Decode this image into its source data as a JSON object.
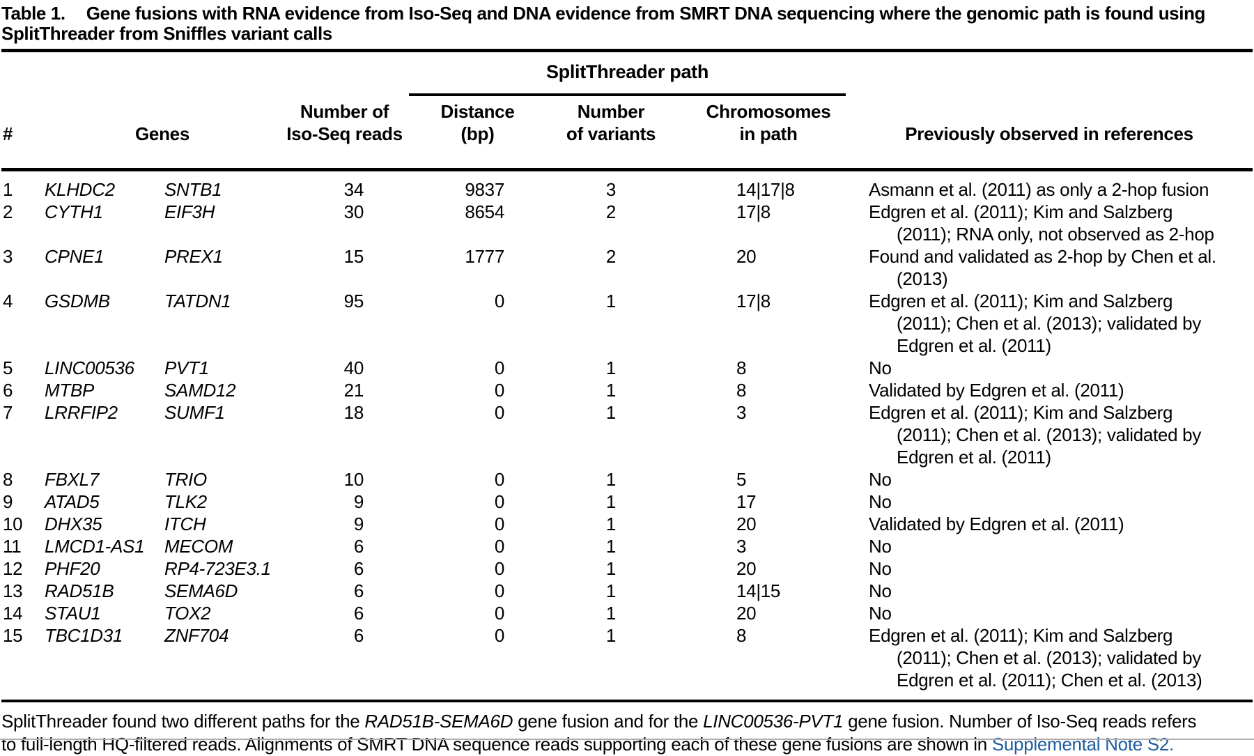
{
  "title": {
    "label": "Table 1.",
    "text": "Gene fusions with RNA evidence from Iso-Seq and DNA evidence from SMRT DNA sequencing where the genomic path is found using\nSplitThreader from Sniffles variant calls"
  },
  "table": {
    "span_header": "SplitThreader path",
    "columns": {
      "num": "#",
      "genes": "Genes",
      "reads": "Number of\nIso-Seq reads",
      "distance": "Distance\n(bp)",
      "variants": "Number\nof variants",
      "chromosomes": "Chromosomes\nin path",
      "references": "Previously observed in references"
    },
    "rows": [
      {
        "num": "1",
        "gene1": "KLHDC2",
        "gene2": "SNTB1",
        "reads": "34",
        "distance": "9837",
        "variants": "3",
        "chromosomes": "14|17|8",
        "reference": "Asmann et al. (2011) as only a 2-hop fusion"
      },
      {
        "num": "2",
        "gene1": "CYTH1",
        "gene2": "EIF3H",
        "reads": "30",
        "distance": "8654",
        "variants": "2",
        "chromosomes": "17|8",
        "reference": "Edgren et al. (2011); Kim and Salzberg\n(2011); RNA only, not observed as 2-hop"
      },
      {
        "num": "3",
        "gene1": "CPNE1",
        "gene2": "PREX1",
        "reads": "15",
        "distance": "1777",
        "variants": "2",
        "chromosomes": "20",
        "reference": "Found and validated as 2-hop by Chen et al.\n(2013)"
      },
      {
        "num": "4",
        "gene1": "GSDMB",
        "gene2": "TATDN1",
        "reads": "95",
        "distance": "0",
        "variants": "1",
        "chromosomes": "17|8",
        "reference": "Edgren et al. (2011); Kim and Salzberg\n(2011); Chen et al. (2013); validated by\nEdgren et al. (2011)"
      },
      {
        "num": "5",
        "gene1": "LINC00536",
        "gene2": "PVT1",
        "reads": "40",
        "distance": "0",
        "variants": "1",
        "chromosomes": "8",
        "reference": "No"
      },
      {
        "num": "6",
        "gene1": "MTBP",
        "gene2": "SAMD12",
        "reads": "21",
        "distance": "0",
        "variants": "1",
        "chromosomes": "8",
        "reference": "Validated by Edgren et al. (2011)"
      },
      {
        "num": "7",
        "gene1": "LRRFIP2",
        "gene2": "SUMF1",
        "reads": "18",
        "distance": "0",
        "variants": "1",
        "chromosomes": "3",
        "reference": "Edgren et al. (2011); Kim and Salzberg\n(2011); Chen et al. (2013); validated by\nEdgren et al. (2011)"
      },
      {
        "num": "8",
        "gene1": "FBXL7",
        "gene2": "TRIO",
        "reads": "10",
        "distance": "0",
        "variants": "1",
        "chromosomes": "5",
        "reference": "No"
      },
      {
        "num": "9",
        "gene1": "ATAD5",
        "gene2": "TLK2",
        "reads": "9",
        "distance": "0",
        "variants": "1",
        "chromosomes": "17",
        "reference": "No"
      },
      {
        "num": "10",
        "gene1": "DHX35",
        "gene2": "ITCH",
        "reads": "9",
        "distance": "0",
        "variants": "1",
        "chromosomes": "20",
        "reference": "Validated by Edgren et al. (2011)"
      },
      {
        "num": "11",
        "gene1": "LMCD1-AS1",
        "gene2": "MECOM",
        "reads": "6",
        "distance": "0",
        "variants": "1",
        "chromosomes": "3",
        "reference": "No"
      },
      {
        "num": "12",
        "gene1": "PHF20",
        "gene2": "RP4-723E3.1",
        "reads": "6",
        "distance": "0",
        "variants": "1",
        "chromosomes": "20",
        "reference": "No"
      },
      {
        "num": "13",
        "gene1": "RAD51B",
        "gene2": "SEMA6D",
        "reads": "6",
        "distance": "0",
        "variants": "1",
        "chromosomes": "14|15",
        "reference": "No"
      },
      {
        "num": "14",
        "gene1": "STAU1",
        "gene2": "TOX2",
        "reads": "6",
        "distance": "0",
        "variants": "1",
        "chromosomes": "20",
        "reference": "No"
      },
      {
        "num": "15",
        "gene1": "TBC1D31",
        "gene2": "ZNF704",
        "reads": "6",
        "distance": "0",
        "variants": "1",
        "chromosomes": "8",
        "reference": "Edgren et al. (2011); Kim and Salzberg\n(2011); Chen et al. (2013); validated by\nEdgren et al. (2011); Chen et al. (2013)"
      }
    ]
  },
  "footnote": {
    "parts": [
      {
        "style": "normal",
        "text": "SplitThreader found two different paths for the "
      },
      {
        "style": "italic",
        "text": "RAD51B-SEMA6D"
      },
      {
        "style": "normal",
        "text": " gene fusion and for the "
      },
      {
        "style": "italic",
        "text": "LINC00536-PVT1"
      },
      {
        "style": "normal",
        "text": " gene fusion. Number of Iso-Seq reads refers\nto full-length HQ-filtered reads. Alignments of SMRT DNA sequence reads supporting each of these gene fusions are shown in "
      },
      {
        "style": "link",
        "text": "Supplemental Note S2."
      }
    ]
  },
  "colors": {
    "link_blue": "#1E5B9C",
    "text": "#000000",
    "background": "#ffffff"
  }
}
